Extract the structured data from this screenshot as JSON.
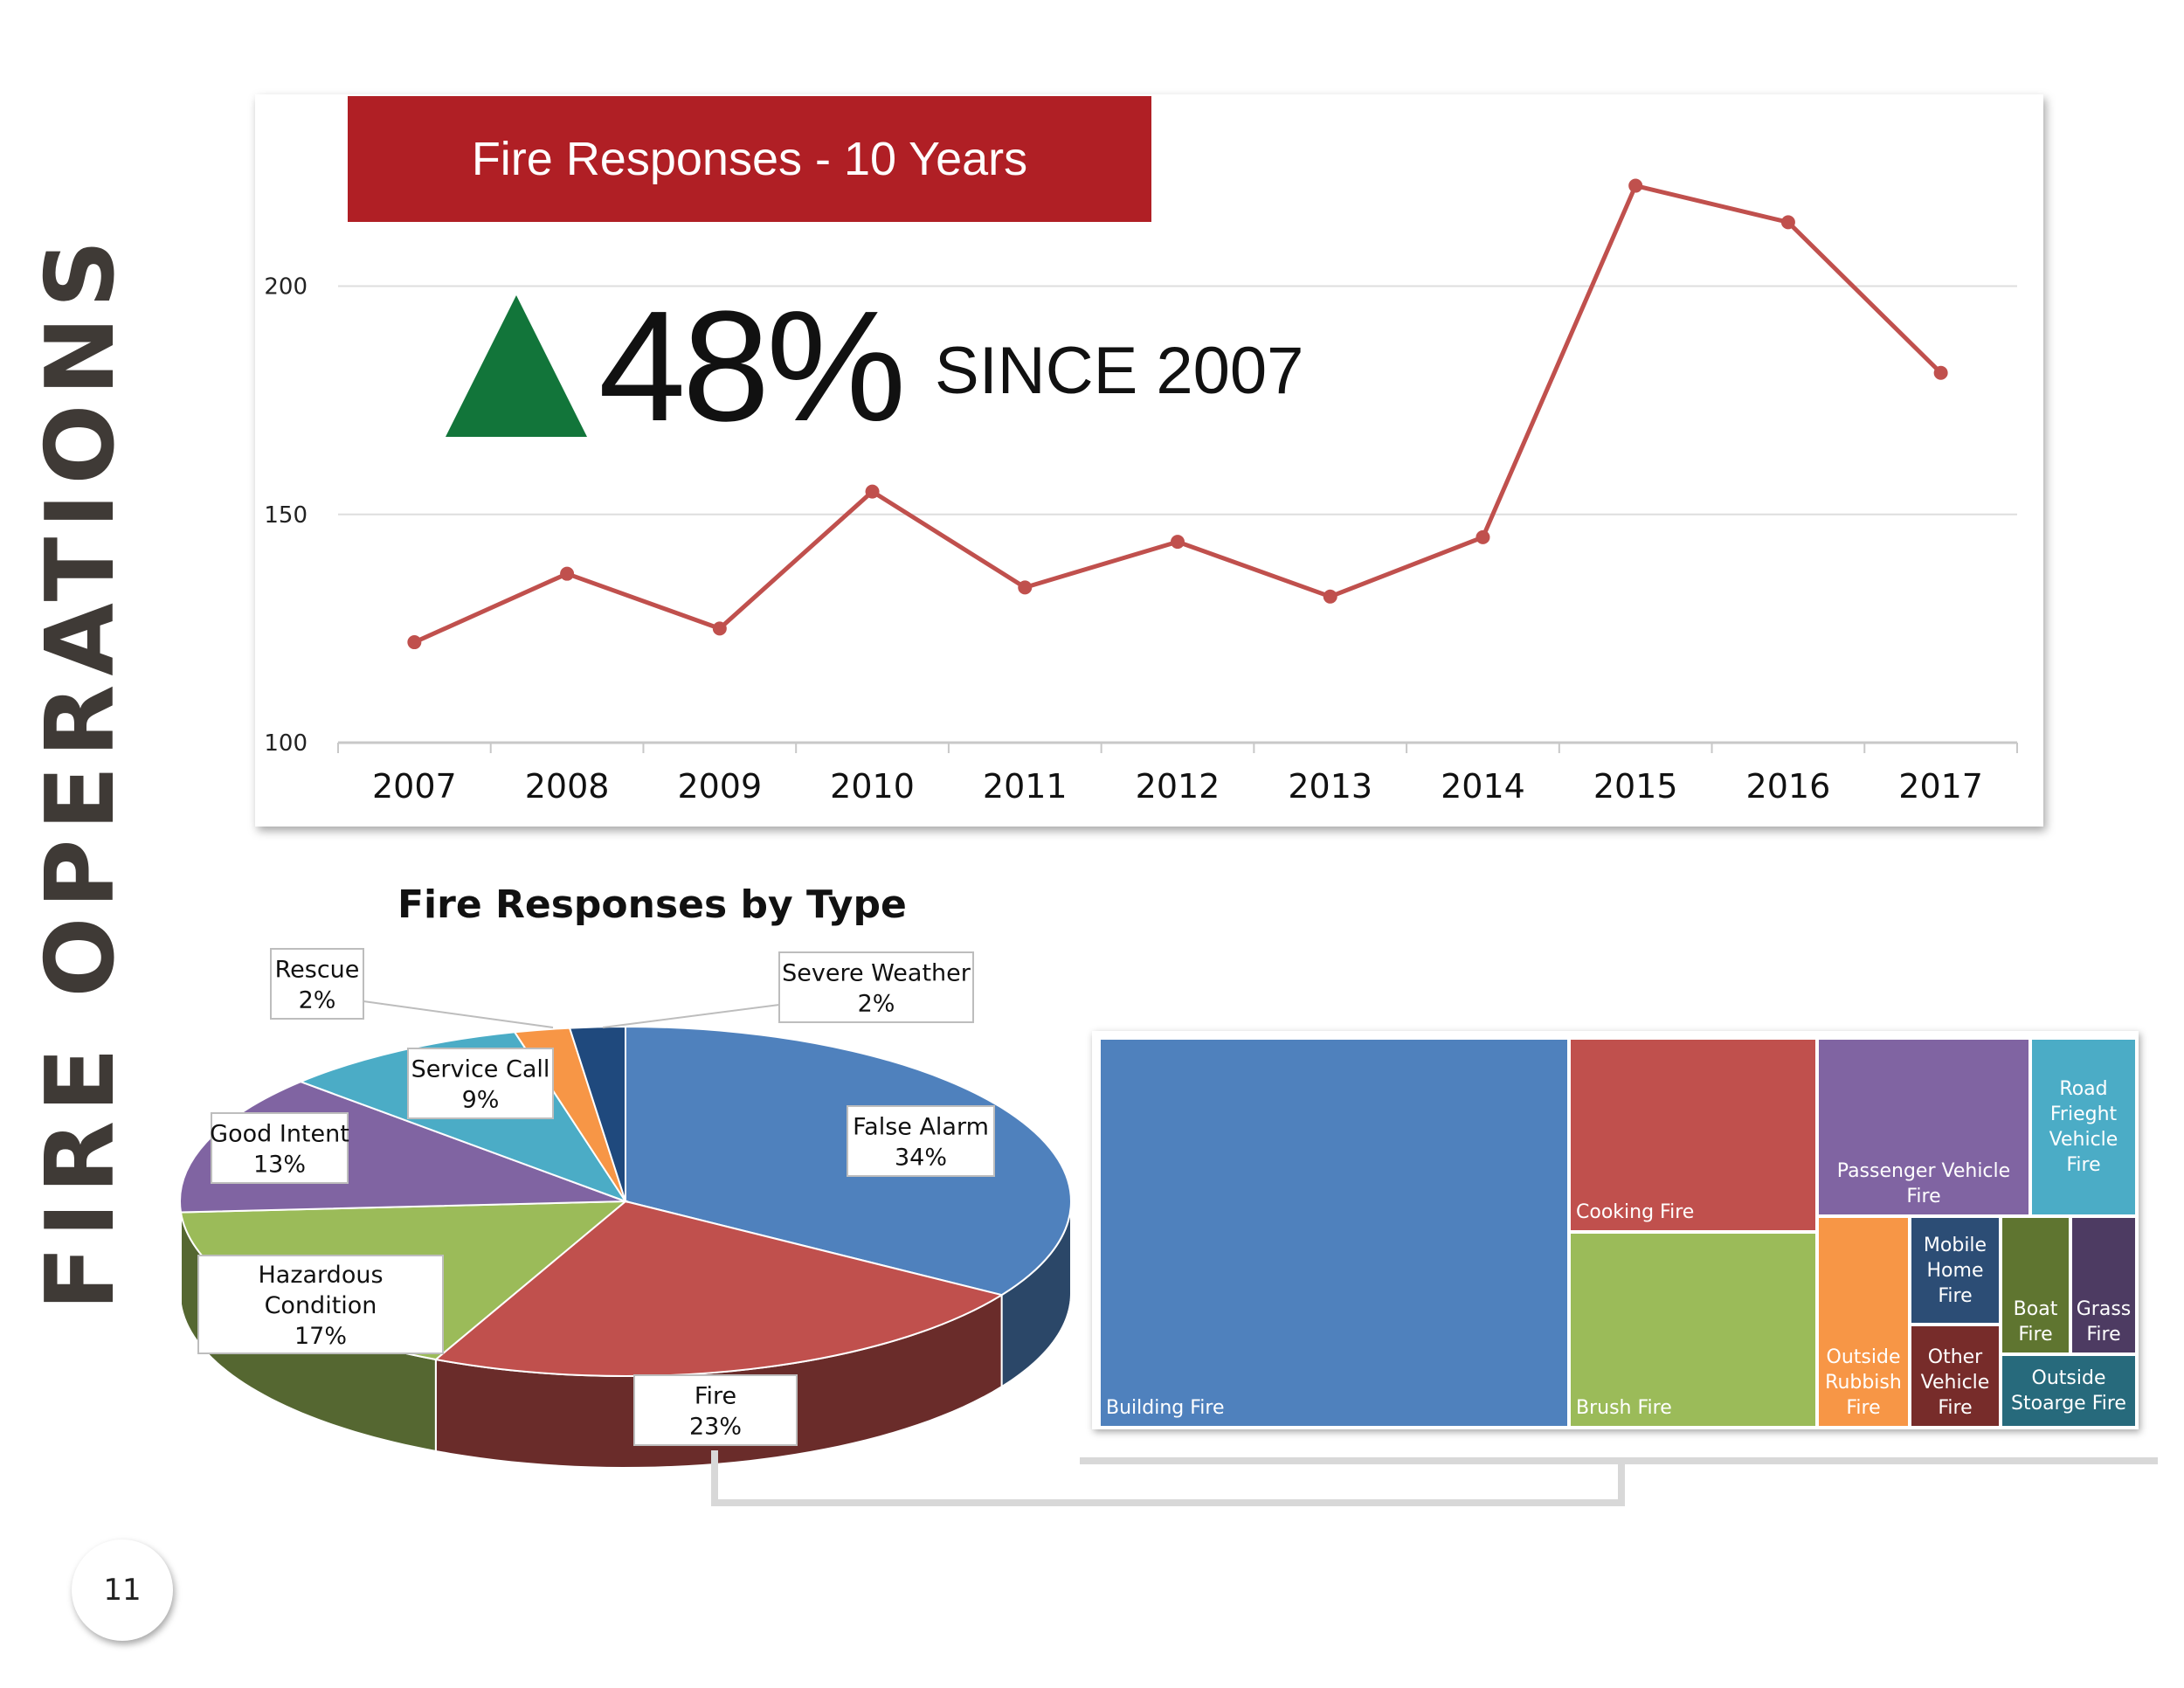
{
  "side_title": "FIRE OPERATIONS",
  "page_number": "11",
  "stat": {
    "value": "48%",
    "text": "SINCE 2007",
    "arrow_color": "#12753a"
  },
  "chart_data": [
    {
      "type": "line",
      "title": "Fire Responses - 10 Years",
      "categories": [
        "2007",
        "2008",
        "2009",
        "2010",
        "2011",
        "2012",
        "2013",
        "2014",
        "2015",
        "2016",
        "2017"
      ],
      "series": [
        {
          "values": [
            122,
            137,
            125,
            155,
            134,
            144,
            132,
            145,
            222,
            214,
            181
          ],
          "color": "#c0504d"
        }
      ],
      "ylim": [
        100,
        220
      ],
      "yticks": [
        100,
        150,
        200
      ],
      "grid": true,
      "title_color": "#b01f25"
    },
    {
      "type": "pie",
      "title": "Fire Responses by Type",
      "slices": [
        {
          "label": "False Alarm",
          "pct_text": "34%",
          "value": 34,
          "color": "#4f81bd"
        },
        {
          "label": "Fire",
          "pct_text": "23%",
          "value": 23,
          "color": "#c0504d"
        },
        {
          "label": "Hazardous Condition",
          "pct_text": "17%",
          "value": 17,
          "color": "#9bbb59"
        },
        {
          "label": "Good Intent",
          "pct_text": "13%",
          "value": 13,
          "color": "#8064a2"
        },
        {
          "label": "Service Call",
          "pct_text": "9%",
          "value": 9,
          "color": "#4bacc6"
        },
        {
          "label": "Rescue",
          "pct_text": "2%",
          "value": 2,
          "color": "#f79646"
        },
        {
          "label": "Severe Weather",
          "pct_text": "2%",
          "value": 2,
          "color": "#1f497d"
        }
      ]
    },
    {
      "type": "treemap",
      "items": [
        {
          "label": "Building Fire",
          "color": "#4f81bd"
        },
        {
          "label": "Cooking Fire",
          "color": "#c0504d"
        },
        {
          "label": "Brush Fire",
          "color": "#9bbb59"
        },
        {
          "label": "Passenger Vehicle Fire",
          "color": "#8064a2"
        },
        {
          "label": "Road Frieght Vehicle Fire",
          "color": "#4bacc6"
        },
        {
          "label": "Outside Rubbish Fire",
          "color": "#f79646"
        },
        {
          "label": "Mobile Home Fire",
          "color": "#2c4d75"
        },
        {
          "label": "Other Vehicle Fire",
          "color": "#772c2a"
        },
        {
          "label": "Boat Fire",
          "color": "#5f7530"
        },
        {
          "label": "Grass Fire",
          "color": "#4d3b62"
        },
        {
          "label": "Outside Stoarge Fire",
          "color": "#276a7c"
        }
      ]
    }
  ]
}
